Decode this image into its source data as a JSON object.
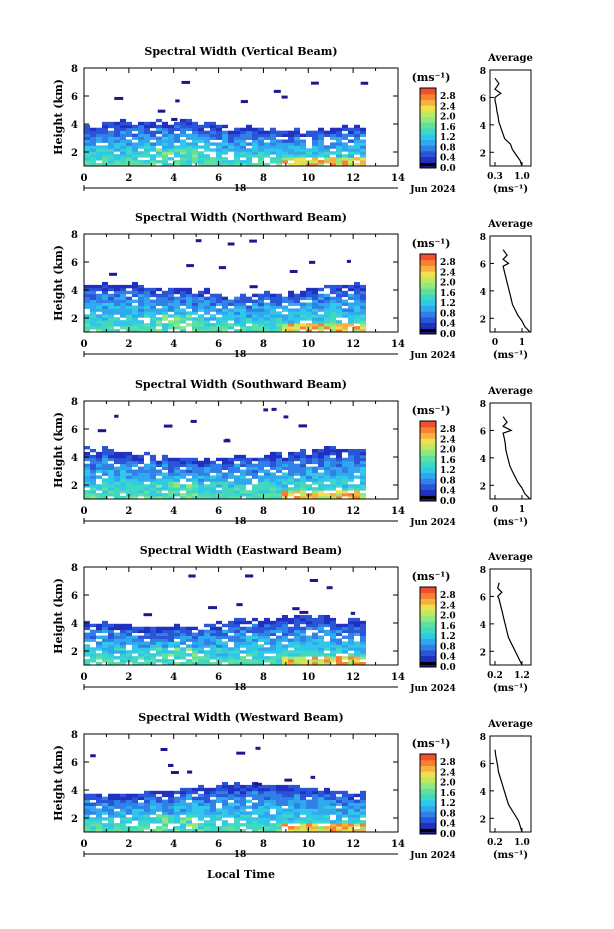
{
  "colorbar": {
    "unit": "(ms⁻¹)",
    "colors": [
      "#1a1a8c",
      "#2030c0",
      "#2a55d8",
      "#3080e8",
      "#30a8f0",
      "#30c8e8",
      "#40d8c0",
      "#60e0a0",
      "#90e880",
      "#c0e860",
      "#f0e050",
      "#f8b040",
      "#f88030",
      "#f05030"
    ]
  },
  "x_axis": {
    "ticks": [
      0,
      2,
      4,
      6,
      8,
      10,
      12,
      14
    ],
    "range": [
      0,
      14
    ],
    "date_mark": "18",
    "date_label": "Jun 2024",
    "label": "Local Time"
  },
  "panels": [
    {
      "title": "Spectral Width (Vertical Beam)",
      "ylabel": "Height (km)",
      "yticks": [
        2,
        4,
        6,
        8
      ],
      "yrange": [
        1,
        8
      ],
      "cbar_ticks": [
        "2.8",
        "2.4",
        "2.0",
        "1.6",
        "1.2",
        "0.8",
        "0.4",
        "0.0"
      ],
      "avg_title": "Average",
      "avg_xticks": [
        "0.3",
        "1.0"
      ],
      "avg_xunit": "(ms⁻¹)",
      "avg_yticks": [
        2,
        4,
        6,
        8
      ]
    },
    {
      "title": "Spectral Width (Northward Beam)",
      "ylabel": "Height (km)",
      "yticks": [
        2,
        4,
        6,
        8
      ],
      "yrange": [
        1,
        8
      ],
      "cbar_ticks": [
        "2.8",
        "2.4",
        "2.0",
        "1.6",
        "1.2",
        "0.8",
        "0.4",
        "0.0"
      ],
      "avg_title": "Average",
      "avg_xticks": [
        "0",
        "1"
      ],
      "avg_xunit": "(ms⁻¹)",
      "avg_yticks": [
        2,
        4,
        6,
        8
      ]
    },
    {
      "title": "Spectral Width (Southward Beam)",
      "ylabel": "Height (km)",
      "yticks": [
        2,
        4,
        6,
        8
      ],
      "yrange": [
        1,
        8
      ],
      "cbar_ticks": [
        "2.8",
        "2.4",
        "2.0",
        "1.6",
        "1.2",
        "0.8",
        "0.4",
        "0.0"
      ],
      "avg_title": "Average",
      "avg_xticks": [
        "0",
        "1"
      ],
      "avg_xunit": "(ms⁻¹)",
      "avg_yticks": [
        2,
        4,
        6,
        8
      ]
    },
    {
      "title": "Spectral Width (Eastward Beam)",
      "ylabel": "Height (km)",
      "yticks": [
        2,
        4,
        6,
        8
      ],
      "yrange": [
        1,
        8
      ],
      "cbar_ticks": [
        "2.8",
        "2.4",
        "2.0",
        "1.6",
        "1.2",
        "0.8",
        "0.4",
        "0.0"
      ],
      "avg_title": "Average",
      "avg_xticks": [
        "0.2",
        "1.2"
      ],
      "avg_xunit": "(ms⁻¹)",
      "avg_yticks": [
        2,
        4,
        6,
        8
      ]
    },
    {
      "title": "Spectral Width (Westward Beam)",
      "ylabel": "Height (km)",
      "yticks": [
        2,
        4,
        6,
        8
      ],
      "yrange": [
        1,
        8
      ],
      "cbar_ticks": [
        "2.8",
        "2.4",
        "2.0",
        "1.6",
        "1.2",
        "0.8",
        "0.4",
        "0.0"
      ],
      "avg_title": "Average",
      "avg_xticks": [
        "0.2",
        "1.0"
      ],
      "avg_xunit": "(ms⁻¹)",
      "avg_yticks": [
        2,
        4,
        6,
        8
      ]
    }
  ],
  "chart_data": [
    {
      "type": "heatmap",
      "title": "Spectral Width (Vertical Beam)",
      "xlabel": "",
      "ylabel": "Height (km)",
      "xlim": [
        0,
        14
      ],
      "ylim": [
        1,
        8
      ],
      "data_extent_x": [
        0,
        12.4
      ],
      "data_extent_y": [
        1,
        3.8
      ],
      "average_profile": {
        "xticks": [
          "0.3",
          "1.0"
        ],
        "x": [
          1.0,
          0.95,
          0.85,
          0.75,
          0.7,
          0.55,
          0.5,
          0.45,
          0.4,
          0.38,
          0.35,
          0.33,
          0.3,
          0.3,
          0.45,
          0.3,
          0.4,
          0.3
        ],
        "y": [
          1.0,
          1.4,
          1.8,
          2.2,
          2.6,
          3.0,
          3.4,
          3.8,
          4.2,
          4.6,
          5.0,
          5.4,
          5.8,
          6.0,
          6.3,
          6.6,
          7.0,
          7.4
        ]
      }
    },
    {
      "type": "heatmap",
      "title": "Spectral Width (Northward Beam)",
      "xlabel": "",
      "ylabel": "Height (km)",
      "xlim": [
        0,
        14
      ],
      "ylim": [
        1,
        8
      ],
      "data_extent_x": [
        0,
        12.4
      ],
      "data_extent_y": [
        1,
        4.0
      ],
      "average_profile": {
        "xticks": [
          "0",
          "1"
        ],
        "x": [
          1.3,
          1.1,
          1.0,
          0.85,
          0.75,
          0.65,
          0.6,
          0.55,
          0.5,
          0.45,
          0.4,
          0.35,
          0.3,
          0.5,
          0.3,
          0.45,
          0.3
        ],
        "y": [
          1.0,
          1.4,
          1.8,
          2.2,
          2.6,
          3.0,
          3.4,
          3.8,
          4.2,
          4.6,
          5.0,
          5.4,
          5.8,
          6.0,
          6.3,
          6.6,
          7.0
        ]
      }
    },
    {
      "type": "heatmap",
      "title": "Spectral Width (Southward Beam)",
      "xlabel": "",
      "ylabel": "Height (km)",
      "xlim": [
        0,
        14
      ],
      "ylim": [
        1,
        8
      ],
      "data_extent_x": [
        0,
        12.4
      ],
      "data_extent_y": [
        1,
        4.2
      ],
      "average_profile": {
        "xticks": [
          "0",
          "1"
        ],
        "x": [
          1.3,
          1.1,
          1.0,
          0.85,
          0.75,
          0.65,
          0.55,
          0.5,
          0.45,
          0.4,
          0.38,
          0.35,
          0.3,
          0.6,
          0.3,
          0.45,
          0.3
        ],
        "y": [
          1.0,
          1.4,
          1.8,
          2.2,
          2.6,
          3.0,
          3.4,
          3.8,
          4.2,
          4.6,
          5.0,
          5.4,
          5.8,
          6.0,
          6.3,
          6.6,
          7.0
        ]
      }
    },
    {
      "type": "heatmap",
      "title": "Spectral Width (Eastward Beam)",
      "xlabel": "",
      "ylabel": "Height (km)",
      "xlim": [
        0,
        14
      ],
      "ylim": [
        1,
        8
      ],
      "data_extent_x": [
        0,
        12.4
      ],
      "data_extent_y": [
        1,
        4.0
      ],
      "average_profile": {
        "xticks": [
          "0.2",
          "1.2"
        ],
        "x": [
          1.2,
          1.1,
          1.0,
          0.9,
          0.8,
          0.7,
          0.65,
          0.6,
          0.55,
          0.5,
          0.45,
          0.4,
          0.35,
          0.3,
          0.45,
          0.3,
          0.35
        ],
        "y": [
          1.0,
          1.4,
          1.8,
          2.2,
          2.6,
          3.0,
          3.4,
          3.8,
          4.2,
          4.6,
          5.0,
          5.4,
          5.8,
          6.0,
          6.3,
          6.6,
          7.0
        ]
      }
    },
    {
      "type": "heatmap",
      "title": "Spectral Width (Westward Beam)",
      "xlabel": "Local Time",
      "ylabel": "Height (km)",
      "xlim": [
        0,
        14
      ],
      "ylim": [
        1,
        8
      ],
      "data_extent_x": [
        0,
        12.4
      ],
      "data_extent_y": [
        1,
        4.0
      ],
      "average_profile": {
        "xticks": [
          "0.2",
          "1.0"
        ],
        "x": [
          1.0,
          0.95,
          0.9,
          0.8,
          0.7,
          0.6,
          0.55,
          0.5,
          0.45,
          0.4,
          0.35,
          0.3,
          0.28,
          0.25,
          0.22,
          0.2
        ],
        "y": [
          1.0,
          1.4,
          1.8,
          2.2,
          2.6,
          3.0,
          3.4,
          3.8,
          4.2,
          4.6,
          5.0,
          5.4,
          5.8,
          6.2,
          6.6,
          7.0
        ]
      }
    }
  ]
}
